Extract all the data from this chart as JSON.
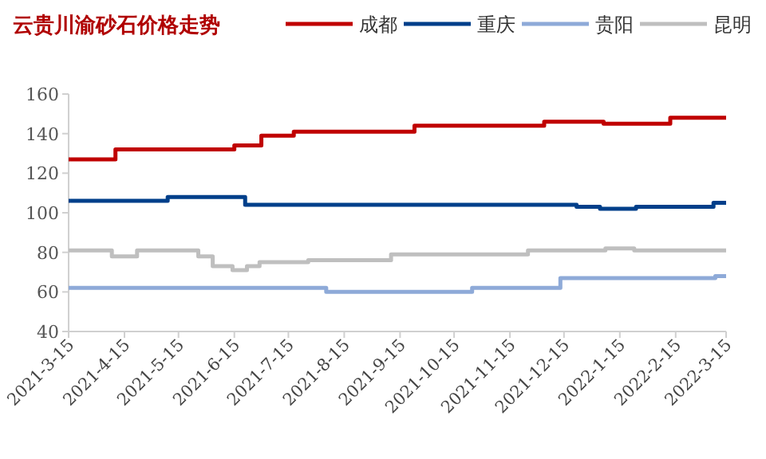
{
  "chart_data": {
    "type": "step",
    "title": "云贵川渝砂石价格走势",
    "xlim": [
      "2021-03-15",
      "2022-03-15"
    ],
    "xticks": [
      {
        "value": "2021-03-15",
        "label": "2021-3-15"
      },
      {
        "value": "2021-04-15",
        "label": "2021-4-15"
      },
      {
        "value": "2021-05-15",
        "label": "2021-5-15"
      },
      {
        "value": "2021-06-15",
        "label": "2021-6-15"
      },
      {
        "value": "2021-07-15",
        "label": "2021-7-15"
      },
      {
        "value": "2021-08-15",
        "label": "2021-8-15"
      },
      {
        "value": "2021-09-15",
        "label": "2021-9-15"
      },
      {
        "value": "2021-10-15",
        "label": "2021-10-15"
      },
      {
        "value": "2021-11-15",
        "label": "2021-11-15"
      },
      {
        "value": "2021-12-15",
        "label": "2021-12-15"
      },
      {
        "value": "2022-01-15",
        "label": "2022-1-15"
      },
      {
        "value": "2022-02-15",
        "label": "2022-2-15"
      },
      {
        "value": "2022-03-15",
        "label": "2022-3-15"
      }
    ],
    "ylim": [
      40,
      160
    ],
    "yticks": [
      40,
      60,
      80,
      100,
      120,
      140,
      160
    ],
    "grid": false,
    "legend": "top right",
    "marker": "none",
    "line_style": "solid",
    "series": [
      {
        "name": "成都",
        "color": "#c00000",
        "x": [
          "2021-03-15",
          "2021-04-10",
          "2021-06-15",
          "2021-06-30",
          "2021-07-18",
          "2021-09-23",
          "2021-12-04",
          "2022-01-06",
          "2022-02-12",
          "2022-03-15"
        ],
        "values": [
          127,
          132,
          134,
          139,
          141,
          144,
          146,
          145,
          148,
          148
        ]
      },
      {
        "name": "重庆",
        "color": "#003f8a",
        "x": [
          "2021-03-15",
          "2021-05-09",
          "2021-06-21",
          "2021-12-22",
          "2022-01-04",
          "2022-01-24",
          "2022-03-08",
          "2022-03-15"
        ],
        "values": [
          106,
          108,
          104,
          103,
          102,
          103,
          105,
          105
        ]
      },
      {
        "name": "贵阳",
        "color": "#8eaad8",
        "x": [
          "2021-03-15",
          "2021-08-05",
          "2021-10-25",
          "2021-12-13",
          "2022-03-09",
          "2022-03-15"
        ],
        "values": [
          62,
          60,
          62,
          67,
          68,
          68
        ]
      },
      {
        "name": "昆明",
        "color": "#bfbfbf",
        "x": [
          "2021-03-15",
          "2021-04-08",
          "2021-04-22",
          "2021-05-26",
          "2021-06-03",
          "2021-06-14",
          "2021-06-22",
          "2021-06-29",
          "2021-07-26",
          "2021-09-10",
          "2021-11-25",
          "2022-01-07",
          "2022-01-23",
          "2022-03-15"
        ],
        "values": [
          81,
          78,
          81,
          78,
          73,
          71,
          73,
          75,
          76,
          79,
          81,
          82,
          81,
          81
        ]
      }
    ]
  }
}
